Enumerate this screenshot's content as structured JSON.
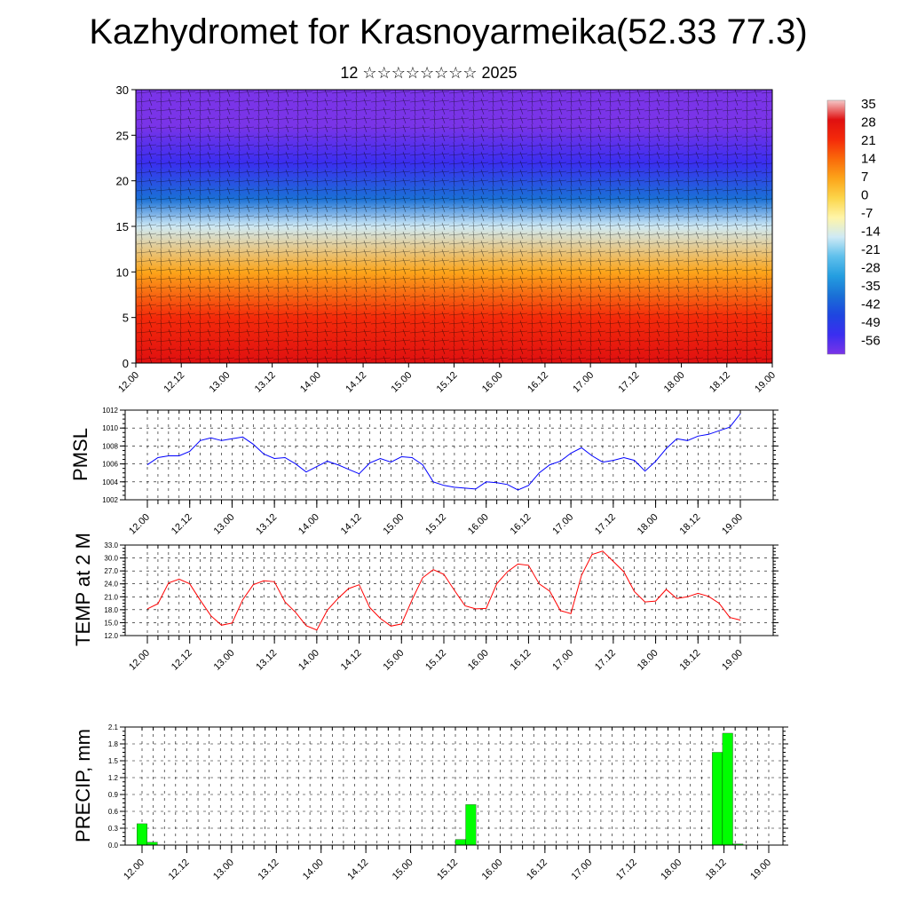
{
  "header": {
    "title": "Kazhydromet for Krasnoyarmeika(52.33 77.3)",
    "date_line": "12 ☆☆☆☆☆☆☆☆ 2025"
  },
  "chart_data": [
    {
      "type": "heatmap",
      "title": "",
      "xlabel": "",
      "ylabel": "",
      "x_tick_labels": [
        "12.00",
        "12.12",
        "13.00",
        "13.12",
        "14.00",
        "14.12",
        "15.00",
        "15.12",
        "16.00",
        "16.12",
        "17.00",
        "17.12",
        "18.00",
        "18.12",
        "19.00"
      ],
      "ylim": [
        0,
        30
      ],
      "y_ticks": [
        0,
        5,
        10,
        15,
        20,
        25,
        30
      ],
      "colorbar": {
        "labels": [
          "35",
          "28",
          "21",
          "14",
          "7",
          "0",
          "-7",
          "-14",
          "-21",
          "-28",
          "-35",
          "-42",
          "-49",
          "-56"
        ]
      },
      "overlay": "wind barbs",
      "temperature_profile_by_level": [
        {
          "level": 0,
          "temp": 28
        },
        {
          "level": 5,
          "temp": 22
        },
        {
          "level": 10,
          "temp": 12
        },
        {
          "level": 15,
          "temp": -10
        },
        {
          "level": 18,
          "temp": -30
        },
        {
          "level": 22,
          "temp": -45
        },
        {
          "level": 26,
          "temp": -55
        },
        {
          "level": 30,
          "temp": -52
        }
      ]
    },
    {
      "type": "line",
      "title": "",
      "ylabel": "PMSL",
      "ylim": [
        1002,
        1012
      ],
      "y_tick_labels": [
        "1002",
        "1004",
        "1006",
        "1008",
        "1010",
        "1012"
      ],
      "x_tick_labels": [
        "12.00",
        "12.12",
        "13.00",
        "13.12",
        "14.00",
        "14.12",
        "15.00",
        "15.12",
        "16.00",
        "16.12",
        "17.00",
        "17.12",
        "18.00",
        "18.12",
        "19.00"
      ],
      "series": [
        {
          "color": "#0000ff",
          "values": [
            1005.9,
            1006.7,
            1006.9,
            1006.9,
            1007.4,
            1008.6,
            1008.9,
            1008.6,
            1008.8,
            1009.0,
            1008.2,
            1007.1,
            1006.6,
            1006.7,
            1006.0,
            1005.1,
            1005.7,
            1006.3,
            1005.9,
            1005.4,
            1004.9,
            1006.1,
            1006.6,
            1006.2,
            1006.8,
            1006.7,
            1005.9,
            1004.0,
            1003.6,
            1003.4,
            1003.3,
            1003.2,
            1004.0,
            1003.9,
            1003.7,
            1003.1,
            1003.6,
            1005.0,
            1005.9,
            1006.3,
            1007.2,
            1007.8,
            1006.9,
            1006.2,
            1006.4,
            1006.7,
            1006.4,
            1005.2,
            1006.3,
            1007.7,
            1008.8,
            1008.6,
            1009.1,
            1009.3,
            1009.7,
            1010.1,
            1011.6
          ]
        }
      ]
    },
    {
      "type": "line",
      "title": "",
      "ylabel": "TEMP at 2 M",
      "ylim": [
        12,
        33
      ],
      "y_tick_labels": [
        "12.0",
        "15.0",
        "18.0",
        "21.0",
        "24.0",
        "27.0",
        "30.0",
        "33.0"
      ],
      "x_tick_labels": [
        "12.00",
        "12.12",
        "13.00",
        "13.12",
        "14.00",
        "14.12",
        "15.00",
        "15.12",
        "16.00",
        "16.12",
        "17.00",
        "17.12",
        "18.00",
        "18.12",
        "19.00"
      ],
      "series": [
        {
          "color": "#ff0000",
          "values": [
            18.2,
            19.4,
            24.2,
            25.1,
            24.0,
            20.2,
            16.6,
            14.4,
            14.9,
            20.3,
            23.8,
            24.7,
            24.5,
            19.8,
            17.4,
            14.3,
            13.3,
            17.9,
            20.6,
            22.9,
            23.8,
            18.5,
            16.0,
            14.2,
            14.7,
            20.3,
            25.4,
            27.3,
            26.2,
            22.5,
            18.9,
            18.2,
            18.3,
            24.0,
            26.8,
            28.6,
            28.3,
            24.0,
            22.3,
            17.8,
            17.1,
            26.0,
            30.8,
            31.6,
            29.2,
            26.8,
            22.2,
            19.8,
            20.0,
            22.7,
            20.6,
            21.0,
            21.8,
            21.1,
            19.5,
            16.2,
            15.6
          ]
        }
      ]
    },
    {
      "type": "bar",
      "title": "",
      "ylabel": "PRECIP, mm",
      "ylim": [
        0,
        2.1
      ],
      "y_tick_labels": [
        "0.0",
        "0.3",
        "0.6",
        "0.9",
        "1.2",
        "1.5",
        "1.8",
        "2.1"
      ],
      "x_tick_labels": [
        "12.00",
        "12.12",
        "13.00",
        "13.12",
        "14.00",
        "14.12",
        "15.00",
        "15.12",
        "16.00",
        "16.12",
        "17.00",
        "17.12",
        "18.00",
        "18.12",
        "19.00"
      ],
      "series": [
        {
          "color": "#00ff00",
          "values": [
            0.38,
            0.05,
            0,
            0,
            0,
            0,
            0,
            0,
            0,
            0,
            0,
            0,
            0,
            0,
            0,
            0,
            0,
            0,
            0,
            0,
            0,
            0,
            0,
            0,
            0,
            0,
            0,
            0,
            0,
            0,
            0,
            0.1,
            0.72,
            0,
            0,
            0,
            0,
            0,
            0,
            0,
            0,
            0,
            0,
            0,
            0,
            0,
            0,
            0,
            0,
            0,
            0,
            0,
            0,
            0,
            0,
            0,
            1.65,
            1.99,
            0.02,
            0,
            0,
            0
          ]
        }
      ]
    }
  ]
}
